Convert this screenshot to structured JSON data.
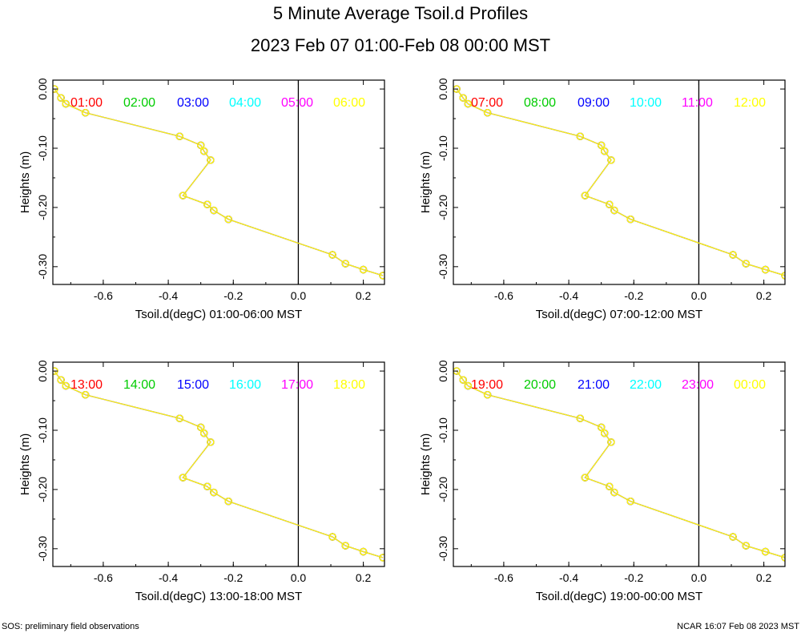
{
  "title": "5 Minute Average Tsoil.d Profiles",
  "subtitle": "2023 Feb 07 01:00-Feb 08 00:00 MST",
  "footer_left": "SOS: preliminary field observations",
  "footer_right": "NCAR 16:07 Feb 08 2023 MST",
  "colors": {
    "series": [
      "#ff0000",
      "#00cc00",
      "#0000ff",
      "#00ffff",
      "#ff00ff",
      "#ffff00"
    ]
  },
  "chart_data": [
    {
      "type": "line",
      "xlabel": "Tsoil.d(degC) 01:00-06:00 MST",
      "ylabel": "Heights (m)",
      "xlim": [
        -0.755,
        0.265
      ],
      "ylim": [
        -0.33,
        0.015
      ],
      "xticks": [
        "-0.6",
        "-0.4",
        "-0.2",
        "0.0",
        "0.2"
      ],
      "yticks": [
        "0.00",
        "-0.10",
        "-0.20",
        "-0.30"
      ],
      "series": [
        {
          "name": "01:00",
          "x": [
            -0.75,
            -0.73,
            -0.715,
            -0.655,
            -0.365,
            -0.3,
            -0.29,
            -0.27,
            -0.355,
            -0.28,
            -0.26,
            -0.215,
            0.105,
            0.145,
            0.2,
            0.26
          ],
          "y": [
            0.0,
            -0.015,
            -0.025,
            -0.04,
            -0.08,
            -0.095,
            -0.105,
            -0.12,
            -0.18,
            -0.195,
            -0.205,
            -0.22,
            -0.28,
            -0.295,
            -0.305,
            -0.315
          ]
        },
        {
          "name": "02:00",
          "x": [
            -0.75,
            -0.73,
            -0.715,
            -0.655,
            -0.365,
            -0.3,
            -0.29,
            -0.27,
            -0.355,
            -0.28,
            -0.26,
            -0.215,
            0.105,
            0.145,
            0.2,
            0.26
          ],
          "y": [
            0.0,
            -0.015,
            -0.025,
            -0.04,
            -0.08,
            -0.095,
            -0.105,
            -0.12,
            -0.18,
            -0.195,
            -0.205,
            -0.22,
            -0.28,
            -0.295,
            -0.305,
            -0.315
          ]
        },
        {
          "name": "03:00",
          "x": [
            -0.75,
            -0.73,
            -0.715,
            -0.655,
            -0.365,
            -0.3,
            -0.29,
            -0.27,
            -0.355,
            -0.28,
            -0.26,
            -0.215,
            0.105,
            0.145,
            0.2,
            0.26
          ],
          "y": [
            0.0,
            -0.015,
            -0.025,
            -0.04,
            -0.08,
            -0.095,
            -0.105,
            -0.12,
            -0.18,
            -0.195,
            -0.205,
            -0.22,
            -0.28,
            -0.295,
            -0.305,
            -0.315
          ]
        },
        {
          "name": "04:00",
          "x": [
            -0.75,
            -0.73,
            -0.715,
            -0.655,
            -0.365,
            -0.3,
            -0.29,
            -0.27,
            -0.355,
            -0.28,
            -0.26,
            -0.215,
            0.105,
            0.145,
            0.2,
            0.26
          ],
          "y": [
            0.0,
            -0.015,
            -0.025,
            -0.04,
            -0.08,
            -0.095,
            -0.105,
            -0.12,
            -0.18,
            -0.195,
            -0.205,
            -0.22,
            -0.28,
            -0.295,
            -0.305,
            -0.315
          ]
        },
        {
          "name": "05:00",
          "x": [
            -0.75,
            -0.73,
            -0.715,
            -0.655,
            -0.365,
            -0.3,
            -0.29,
            -0.27,
            -0.355,
            -0.28,
            -0.26,
            -0.215,
            0.105,
            0.145,
            0.2,
            0.26
          ],
          "y": [
            0.0,
            -0.015,
            -0.025,
            -0.04,
            -0.08,
            -0.095,
            -0.105,
            -0.12,
            -0.18,
            -0.195,
            -0.205,
            -0.22,
            -0.28,
            -0.295,
            -0.305,
            -0.315
          ]
        },
        {
          "name": "06:00",
          "x": [
            -0.75,
            -0.73,
            -0.715,
            -0.655,
            -0.365,
            -0.3,
            -0.29,
            -0.27,
            -0.355,
            -0.28,
            -0.26,
            -0.215,
            0.105,
            0.145,
            0.2,
            0.26
          ],
          "y": [
            0.0,
            -0.015,
            -0.025,
            -0.04,
            -0.08,
            -0.095,
            -0.105,
            -0.12,
            -0.18,
            -0.195,
            -0.205,
            -0.22,
            -0.28,
            -0.295,
            -0.305,
            -0.315
          ]
        }
      ]
    },
    {
      "type": "line",
      "xlabel": "Tsoil.d(degC) 07:00-12:00 MST",
      "ylabel": "Heights (m)",
      "xlim": [
        -0.755,
        0.265
      ],
      "ylim": [
        -0.33,
        0.015
      ],
      "xticks": [
        "-0.6",
        "-0.4",
        "-0.2",
        "0.0",
        "0.2"
      ],
      "yticks": [
        "0.00",
        "-0.10",
        "-0.20",
        "-0.30"
      ],
      "series": [
        {
          "name": "07:00",
          "x": [
            -0.745,
            -0.725,
            -0.71,
            -0.65,
            -0.365,
            -0.3,
            -0.29,
            -0.27,
            -0.35,
            -0.275,
            -0.26,
            -0.21,
            0.105,
            0.145,
            0.205,
            0.265
          ],
          "y": [
            0.0,
            -0.015,
            -0.025,
            -0.04,
            -0.08,
            -0.095,
            -0.105,
            -0.12,
            -0.18,
            -0.195,
            -0.205,
            -0.22,
            -0.28,
            -0.295,
            -0.305,
            -0.315
          ]
        },
        {
          "name": "08:00",
          "x": [
            -0.745,
            -0.725,
            -0.71,
            -0.65,
            -0.365,
            -0.3,
            -0.29,
            -0.27,
            -0.35,
            -0.275,
            -0.26,
            -0.21,
            0.105,
            0.145,
            0.205,
            0.265
          ],
          "y": [
            0.0,
            -0.015,
            -0.025,
            -0.04,
            -0.08,
            -0.095,
            -0.105,
            -0.12,
            -0.18,
            -0.195,
            -0.205,
            -0.22,
            -0.28,
            -0.295,
            -0.305,
            -0.315
          ]
        },
        {
          "name": "09:00",
          "x": [
            -0.745,
            -0.725,
            -0.71,
            -0.65,
            -0.365,
            -0.3,
            -0.29,
            -0.27,
            -0.35,
            -0.275,
            -0.26,
            -0.21,
            0.105,
            0.145,
            0.205,
            0.265
          ],
          "y": [
            0.0,
            -0.015,
            -0.025,
            -0.04,
            -0.08,
            -0.095,
            -0.105,
            -0.12,
            -0.18,
            -0.195,
            -0.205,
            -0.22,
            -0.28,
            -0.295,
            -0.305,
            -0.315
          ]
        },
        {
          "name": "10:00",
          "x": [
            -0.745,
            -0.725,
            -0.71,
            -0.65,
            -0.365,
            -0.3,
            -0.29,
            -0.27,
            -0.35,
            -0.275,
            -0.26,
            -0.21,
            0.105,
            0.145,
            0.205,
            0.265
          ],
          "y": [
            0.0,
            -0.015,
            -0.025,
            -0.04,
            -0.08,
            -0.095,
            -0.105,
            -0.12,
            -0.18,
            -0.195,
            -0.205,
            -0.22,
            -0.28,
            -0.295,
            -0.305,
            -0.315
          ]
        },
        {
          "name": "11:00",
          "x": [
            -0.745,
            -0.725,
            -0.71,
            -0.65,
            -0.365,
            -0.3,
            -0.29,
            -0.27,
            -0.35,
            -0.275,
            -0.26,
            -0.21,
            0.105,
            0.145,
            0.205,
            0.265
          ],
          "y": [
            0.0,
            -0.015,
            -0.025,
            -0.04,
            -0.08,
            -0.095,
            -0.105,
            -0.12,
            -0.18,
            -0.195,
            -0.205,
            -0.22,
            -0.28,
            -0.295,
            -0.305,
            -0.315
          ]
        },
        {
          "name": "12:00",
          "x": [
            -0.745,
            -0.725,
            -0.71,
            -0.65,
            -0.365,
            -0.3,
            -0.29,
            -0.27,
            -0.35,
            -0.275,
            -0.26,
            -0.21,
            0.105,
            0.145,
            0.205,
            0.265
          ],
          "y": [
            0.0,
            -0.015,
            -0.025,
            -0.04,
            -0.08,
            -0.095,
            -0.105,
            -0.12,
            -0.18,
            -0.195,
            -0.205,
            -0.22,
            -0.28,
            -0.295,
            -0.305,
            -0.315
          ]
        }
      ]
    },
    {
      "type": "line",
      "xlabel": "Tsoil.d(degC) 13:00-18:00 MST",
      "ylabel": "Heights (m)",
      "xlim": [
        -0.755,
        0.265
      ],
      "ylim": [
        -0.33,
        0.015
      ],
      "xticks": [
        "-0.6",
        "-0.4",
        "-0.2",
        "0.0",
        "0.2"
      ],
      "yticks": [
        "0.00",
        "-0.10",
        "-0.20",
        "-0.30"
      ],
      "series": [
        {
          "name": "13:00",
          "x": [
            -0.75,
            -0.73,
            -0.715,
            -0.655,
            -0.365,
            -0.3,
            -0.29,
            -0.27,
            -0.355,
            -0.28,
            -0.26,
            -0.215,
            0.105,
            0.145,
            0.2,
            0.26
          ],
          "y": [
            0.0,
            -0.015,
            -0.025,
            -0.04,
            -0.08,
            -0.095,
            -0.105,
            -0.12,
            -0.18,
            -0.195,
            -0.205,
            -0.22,
            -0.28,
            -0.295,
            -0.305,
            -0.315
          ]
        },
        {
          "name": "14:00",
          "x": [
            -0.75,
            -0.73,
            -0.715,
            -0.655,
            -0.365,
            -0.3,
            -0.29,
            -0.27,
            -0.355,
            -0.28,
            -0.26,
            -0.215,
            0.105,
            0.145,
            0.2,
            0.26
          ],
          "y": [
            0.0,
            -0.015,
            -0.025,
            -0.04,
            -0.08,
            -0.095,
            -0.105,
            -0.12,
            -0.18,
            -0.195,
            -0.205,
            -0.22,
            -0.28,
            -0.295,
            -0.305,
            -0.315
          ]
        },
        {
          "name": "15:00",
          "x": [
            -0.75,
            -0.73,
            -0.715,
            -0.655,
            -0.365,
            -0.3,
            -0.29,
            -0.27,
            -0.355,
            -0.28,
            -0.26,
            -0.215,
            0.105,
            0.145,
            0.2,
            0.26
          ],
          "y": [
            0.0,
            -0.015,
            -0.025,
            -0.04,
            -0.08,
            -0.095,
            -0.105,
            -0.12,
            -0.18,
            -0.195,
            -0.205,
            -0.22,
            -0.28,
            -0.295,
            -0.305,
            -0.315
          ]
        },
        {
          "name": "16:00",
          "x": [
            -0.75,
            -0.73,
            -0.715,
            -0.655,
            -0.365,
            -0.3,
            -0.29,
            -0.27,
            -0.355,
            -0.28,
            -0.26,
            -0.215,
            0.105,
            0.145,
            0.2,
            0.26
          ],
          "y": [
            0.0,
            -0.015,
            -0.025,
            -0.04,
            -0.08,
            -0.095,
            -0.105,
            -0.12,
            -0.18,
            -0.195,
            -0.205,
            -0.22,
            -0.28,
            -0.295,
            -0.305,
            -0.315
          ]
        },
        {
          "name": "17:00",
          "x": [
            -0.75,
            -0.73,
            -0.715,
            -0.655,
            -0.365,
            -0.3,
            -0.29,
            -0.27,
            -0.355,
            -0.28,
            -0.26,
            -0.215,
            0.105,
            0.145,
            0.2,
            0.26
          ],
          "y": [
            0.0,
            -0.015,
            -0.025,
            -0.04,
            -0.08,
            -0.095,
            -0.105,
            -0.12,
            -0.18,
            -0.195,
            -0.205,
            -0.22,
            -0.28,
            -0.295,
            -0.305,
            -0.315
          ]
        },
        {
          "name": "18:00",
          "x": [
            -0.75,
            -0.73,
            -0.715,
            -0.655,
            -0.365,
            -0.3,
            -0.29,
            -0.27,
            -0.355,
            -0.28,
            -0.26,
            -0.215,
            0.105,
            0.145,
            0.2,
            0.26
          ],
          "y": [
            0.0,
            -0.015,
            -0.025,
            -0.04,
            -0.08,
            -0.095,
            -0.105,
            -0.12,
            -0.18,
            -0.195,
            -0.205,
            -0.22,
            -0.28,
            -0.295,
            -0.305,
            -0.315
          ]
        }
      ]
    },
    {
      "type": "line",
      "xlabel": "Tsoil.d(degC) 19:00-00:00 MST",
      "ylabel": "Heights (m)",
      "xlim": [
        -0.755,
        0.265
      ],
      "ylim": [
        -0.33,
        0.015
      ],
      "xticks": [
        "-0.6",
        "-0.4",
        "-0.2",
        "0.0",
        "0.2"
      ],
      "yticks": [
        "0.00",
        "-0.10",
        "-0.20",
        "-0.30"
      ],
      "series": [
        {
          "name": "19:00",
          "x": [
            -0.745,
            -0.725,
            -0.71,
            -0.65,
            -0.365,
            -0.3,
            -0.29,
            -0.27,
            -0.35,
            -0.275,
            -0.26,
            -0.21,
            0.105,
            0.145,
            0.205,
            0.265
          ],
          "y": [
            0.0,
            -0.015,
            -0.025,
            -0.04,
            -0.08,
            -0.095,
            -0.105,
            -0.12,
            -0.18,
            -0.195,
            -0.205,
            -0.22,
            -0.28,
            -0.295,
            -0.305,
            -0.315
          ]
        },
        {
          "name": "20:00",
          "x": [
            -0.745,
            -0.725,
            -0.71,
            -0.65,
            -0.365,
            -0.3,
            -0.29,
            -0.27,
            -0.35,
            -0.275,
            -0.26,
            -0.21,
            0.105,
            0.145,
            0.205,
            0.265
          ],
          "y": [
            0.0,
            -0.015,
            -0.025,
            -0.04,
            -0.08,
            -0.095,
            -0.105,
            -0.12,
            -0.18,
            -0.195,
            -0.205,
            -0.22,
            -0.28,
            -0.295,
            -0.305,
            -0.315
          ]
        },
        {
          "name": "21:00",
          "x": [
            -0.745,
            -0.725,
            -0.71,
            -0.65,
            -0.365,
            -0.3,
            -0.29,
            -0.27,
            -0.35,
            -0.275,
            -0.26,
            -0.21,
            0.105,
            0.145,
            0.205,
            0.265
          ],
          "y": [
            0.0,
            -0.015,
            -0.025,
            -0.04,
            -0.08,
            -0.095,
            -0.105,
            -0.12,
            -0.18,
            -0.195,
            -0.205,
            -0.22,
            -0.28,
            -0.295,
            -0.305,
            -0.315
          ]
        },
        {
          "name": "22:00",
          "x": [
            -0.745,
            -0.725,
            -0.71,
            -0.65,
            -0.365,
            -0.3,
            -0.29,
            -0.27,
            -0.35,
            -0.275,
            -0.26,
            -0.21,
            0.105,
            0.145,
            0.205,
            0.265
          ],
          "y": [
            0.0,
            -0.015,
            -0.025,
            -0.04,
            -0.08,
            -0.095,
            -0.105,
            -0.12,
            -0.18,
            -0.195,
            -0.205,
            -0.22,
            -0.28,
            -0.295,
            -0.305,
            -0.315
          ]
        },
        {
          "name": "23:00",
          "x": [
            -0.745,
            -0.725,
            -0.71,
            -0.65,
            -0.365,
            -0.3,
            -0.29,
            -0.27,
            -0.35,
            -0.275,
            -0.26,
            -0.21,
            0.105,
            0.145,
            0.205,
            0.265
          ],
          "y": [
            0.0,
            -0.015,
            -0.025,
            -0.04,
            -0.08,
            -0.095,
            -0.105,
            -0.12,
            -0.18,
            -0.195,
            -0.205,
            -0.22,
            -0.28,
            -0.295,
            -0.305,
            -0.315
          ]
        },
        {
          "name": "00:00",
          "x": [
            -0.745,
            -0.725,
            -0.71,
            -0.65,
            -0.365,
            -0.3,
            -0.29,
            -0.27,
            -0.35,
            -0.275,
            -0.26,
            -0.21,
            0.105,
            0.145,
            0.205,
            0.265
          ],
          "y": [
            0.0,
            -0.015,
            -0.025,
            -0.04,
            -0.08,
            -0.095,
            -0.105,
            -0.12,
            -0.18,
            -0.195,
            -0.205,
            -0.22,
            -0.28,
            -0.295,
            -0.305,
            -0.315
          ]
        }
      ]
    }
  ]
}
